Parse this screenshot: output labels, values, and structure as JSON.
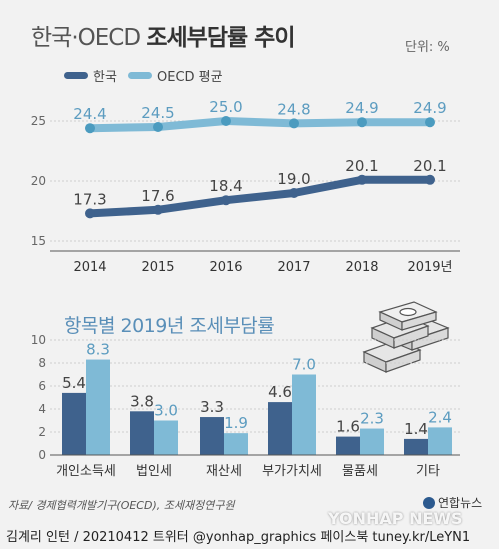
{
  "title_light": "한국·OECD",
  "title_bold": "조세부담률 추이",
  "unit": "단위: %",
  "colors": {
    "korea": "#3f628d",
    "oecd": "#7fbad6",
    "oecd_marker": "#4b9bbf",
    "bar_title": "#5a8fb8"
  },
  "chart_data": [
    {
      "type": "line",
      "x": [
        "2014",
        "2015",
        "2016",
        "2017",
        "2018",
        "2019년"
      ],
      "series": [
        {
          "name": "한국",
          "values": [
            17.3,
            17.6,
            18.4,
            19.0,
            20.1,
            20.1
          ],
          "labels": [
            "17.3",
            "17.6",
            "18.4",
            "19.0",
            "20.1",
            "20.1"
          ]
        },
        {
          "name": "OECD 평균",
          "values": [
            24.4,
            24.5,
            25.0,
            24.8,
            24.9,
            24.9
          ],
          "labels": [
            "24.4",
            "24.5",
            "25.0",
            "24.8",
            "24.9",
            "24.9"
          ]
        }
      ],
      "yticks": [
        "15",
        "20",
        "25"
      ],
      "ylim": [
        15,
        25
      ],
      "grid": true,
      "legend": "top-left"
    },
    {
      "type": "bar",
      "title": "항목별 2019년 조세부담률",
      "categories": [
        "개인소득세",
        "법인세",
        "재산세",
        "부가가치세",
        "물품세",
        "기타"
      ],
      "series": [
        {
          "name": "한국",
          "values": [
            5.4,
            3.8,
            3.3,
            4.6,
            1.6,
            1.4
          ],
          "labels": [
            "5.4",
            "3.8",
            "3.3",
            "4.6",
            "1.6",
            "1.4"
          ]
        },
        {
          "name": "OECD 평균",
          "values": [
            8.3,
            3.0,
            1.9,
            7.0,
            2.3,
            2.4
          ],
          "labels": [
            "8.3",
            "3.0",
            "1.9",
            "7.0",
            "2.3",
            "2.4"
          ]
        }
      ],
      "yticks": [
        "0",
        "2",
        "4",
        "6",
        "8",
        "10"
      ],
      "ylim": [
        0,
        10
      ],
      "grid": true
    }
  ],
  "source": "자료/ 경제협력개발기구(OECD), 조세재정연구원",
  "footer": "김계리 인턴 / 20210412   트위터 @yonhap_graphics  페이스북 tuney.kr/LeYN1",
  "watermark": "YONHAP NEWS",
  "logo": "연합뉴스",
  "icons": {
    "illustration": "money-stack-icon"
  }
}
